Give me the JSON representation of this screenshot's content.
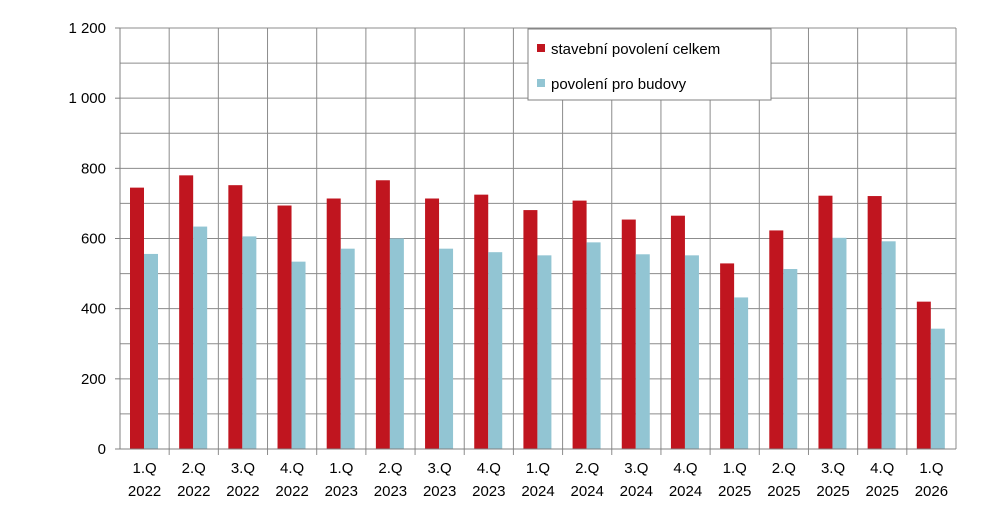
{
  "chart_data": {
    "type": "bar",
    "categories": [
      [
        "1.Q",
        "2022"
      ],
      [
        "2.Q",
        "2022"
      ],
      [
        "3.Q",
        "2022"
      ],
      [
        "4.Q",
        "2022"
      ],
      [
        "1.Q",
        "2023"
      ],
      [
        "2.Q",
        "2023"
      ],
      [
        "3.Q",
        "2023"
      ],
      [
        "4.Q",
        "2023"
      ],
      [
        "1.Q",
        "2024"
      ],
      [
        "2.Q",
        "2024"
      ],
      [
        "3.Q",
        "2024"
      ],
      [
        "4.Q",
        "2024"
      ],
      [
        "1.Q",
        "2025"
      ],
      [
        "2.Q",
        "2025"
      ],
      [
        "3.Q",
        "2025"
      ],
      [
        "4.Q",
        "2025"
      ],
      [
        "1.Q",
        "2026"
      ]
    ],
    "series": [
      {
        "name": "stavební povolení celkem",
        "color": "#c0151f",
        "values": [
          745,
          780,
          752,
          694,
          714,
          766,
          714,
          725,
          681,
          708,
          654,
          665,
          529,
          623,
          722,
          721,
          420
        ]
      },
      {
        "name": "povolení pro budovy",
        "color": "#92c5d3",
        "values": [
          556,
          634,
          606,
          534,
          571,
          600,
          571,
          561,
          552,
          589,
          555,
          552,
          432,
          513,
          602,
          592,
          343
        ]
      }
    ],
    "yticks": [
      "0",
      "200",
      "400",
      "600",
      "800",
      "1 000",
      "1 200"
    ],
    "ylim": [
      0,
      1200
    ],
    "grid": true,
    "legend_position": "top-center",
    "title": "",
    "xlabel": "",
    "ylabel": ""
  }
}
